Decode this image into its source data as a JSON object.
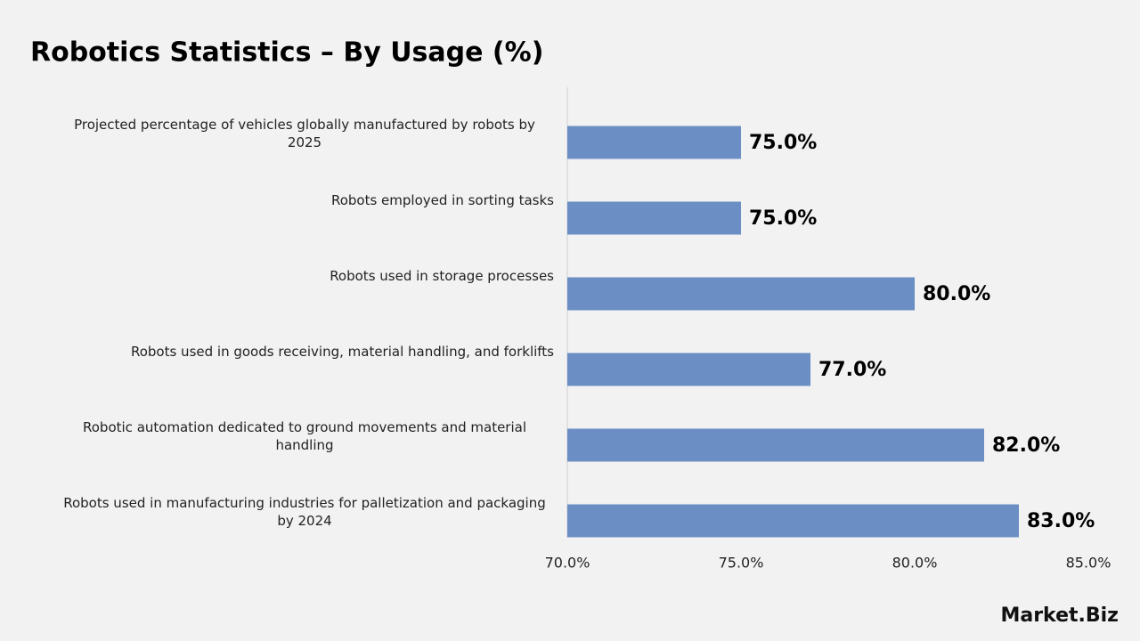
{
  "chart_data": {
    "type": "hbar",
    "title": "Robotics Statistics – By Usage (%)",
    "categories": [
      "Projected percentage of vehicles globally manufactured by robots by 2025",
      "Robots employed in sorting tasks",
      "Robots used in storage processes",
      "Robots used in goods receiving, material handling, and forklifts",
      "Robotic automation dedicated to ground movements and material handling",
      "Robots used in manufacturing industries for palletization and packaging by 2024"
    ],
    "values": [
      75,
      75,
      80,
      77,
      82,
      83
    ],
    "value_labels": [
      "75.0%",
      "75.0%",
      "80.0%",
      "77.0%",
      "82.0%",
      "83.0%"
    ],
    "color": "#6b8ec4",
    "xlim": [
      70,
      85
    ],
    "xticks": [
      {
        "value": 70,
        "label": "70.0%"
      },
      {
        "value": 75,
        "label": "75.0%"
      },
      {
        "value": 80,
        "label": "80.0%"
      },
      {
        "value": 85,
        "label": "85.0%"
      }
    ],
    "grid": false
  },
  "logo": "Market.Biz"
}
